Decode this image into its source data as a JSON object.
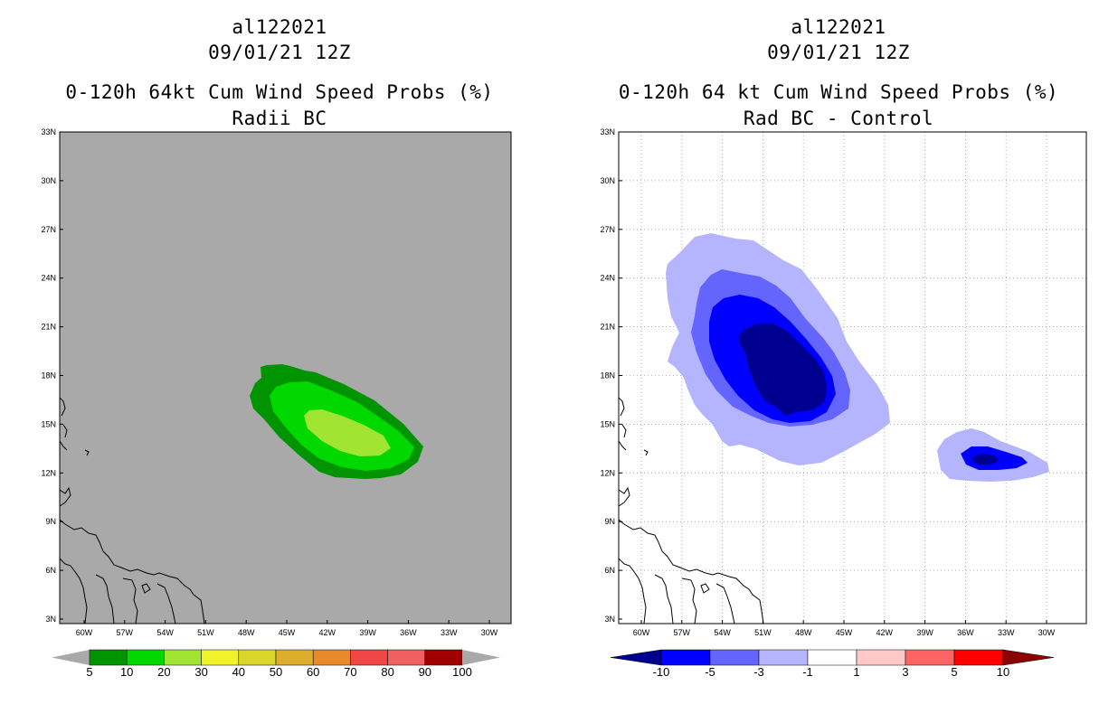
{
  "panels": [
    {
      "id": "left",
      "title_line1": "al122021",
      "title_line2": "09/01/21 12Z",
      "title_line3": "0-120h 64kt Cum Wind Speed Probs (%)",
      "title_line4": "Radii BC",
      "background_color": "#a9a9a9",
      "gridlines": false,
      "colorbar": {
        "labels": [
          "5",
          "10",
          "20",
          "30",
          "40",
          "50",
          "60",
          "70",
          "80",
          "90",
          "100"
        ],
        "colors": [
          "#009500",
          "#00d800",
          "#a2e432",
          "#f2f22b",
          "#dcd62a",
          "#dcae2b",
          "#e88a2a",
          "#f04646",
          "#f06060",
          "#a00000",
          "#8a20e0"
        ]
      }
    },
    {
      "id": "right",
      "title_line1": "al122021",
      "title_line2": "09/01/21 12Z",
      "title_line3": "0-120h 64 kt Cum Wind Speed Probs (%)",
      "title_line4": "Rad BC - Control",
      "background_color": "#ffffff",
      "gridlines": true,
      "colorbar": {
        "labels": [
          "-10",
          "-5",
          "-3",
          "-1",
          "1",
          "3",
          "5",
          "10"
        ],
        "colors": [
          "#000090",
          "#0000ff",
          "#6464ff",
          "#b4b4ff",
          "#ffffff",
          "#ffc8c8",
          "#ff6464",
          "#ff0000",
          "#8c0000"
        ]
      }
    }
  ],
  "axes": {
    "lat_labels": [
      "33N",
      "30N",
      "27N",
      "24N",
      "21N",
      "18N",
      "15N",
      "12N",
      "9N",
      "6N",
      "3N"
    ],
    "lon_labels": [
      "60W",
      "57W",
      "54W",
      "51W",
      "48W",
      "45W",
      "42W",
      "39W",
      "36W",
      "33W",
      "30W"
    ]
  }
}
